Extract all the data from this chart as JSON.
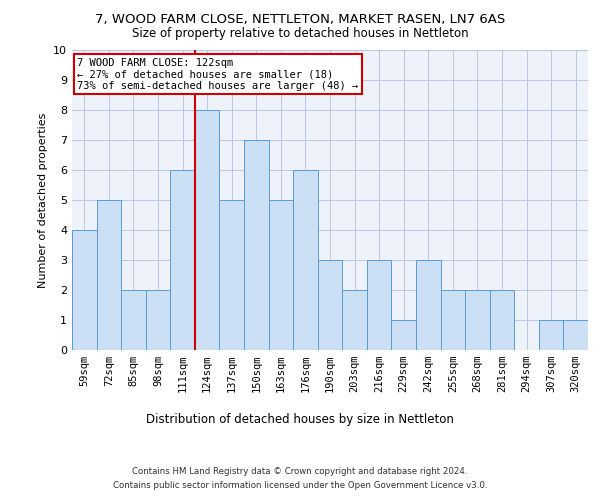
{
  "title1": "7, WOOD FARM CLOSE, NETTLETON, MARKET RASEN, LN7 6AS",
  "title2": "Size of property relative to detached houses in Nettleton",
  "xlabel": "Distribution of detached houses by size in Nettleton",
  "ylabel": "Number of detached properties",
  "categories": [
    "59sqm",
    "72sqm",
    "85sqm",
    "98sqm",
    "111sqm",
    "124sqm",
    "137sqm",
    "150sqm",
    "163sqm",
    "176sqm",
    "190sqm",
    "203sqm",
    "216sqm",
    "229sqm",
    "242sqm",
    "255sqm",
    "268sqm",
    "281sqm",
    "294sqm",
    "307sqm",
    "320sqm"
  ],
  "values": [
    4,
    5,
    2,
    2,
    6,
    8,
    5,
    7,
    5,
    6,
    3,
    2,
    3,
    1,
    3,
    2,
    2,
    2,
    0,
    1,
    1
  ],
  "bar_color": "#cce0f5",
  "bar_edge_color": "#5b9bd5",
  "vline_color": "#cc0000",
  "annotation_text": "7 WOOD FARM CLOSE: 122sqm\n← 27% of detached houses are smaller (18)\n73% of semi-detached houses are larger (48) →",
  "annotation_box_color": "#ffffff",
  "annotation_box_edge": "#cc0000",
  "ylim": [
    0,
    10
  ],
  "yticks": [
    0,
    1,
    2,
    3,
    4,
    5,
    6,
    7,
    8,
    9,
    10
  ],
  "grid_color": "#b8c8e0",
  "background_color": "#eef2fa",
  "footnote1": "Contains HM Land Registry data © Crown copyright and database right 2024.",
  "footnote2": "Contains public sector information licensed under the Open Government Licence v3.0."
}
